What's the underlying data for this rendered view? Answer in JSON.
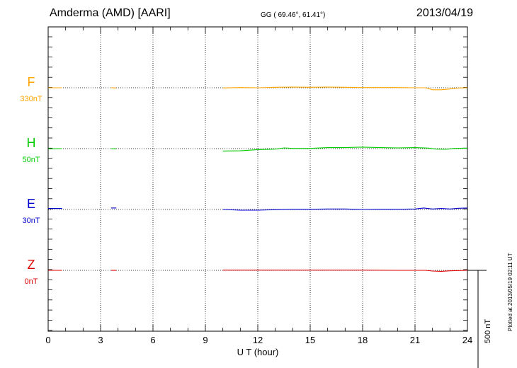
{
  "header": {
    "station": "Amderma (AMD)  [AARI]",
    "coords": "GG ( 69.46°,  61.41°)",
    "date": "2013/04/19"
  },
  "footer": {
    "plotted": "Plotted at 2013/05/19 02:11 UT"
  },
  "scale_bar": {
    "label": "500 nT",
    "value_nT": 500
  },
  "colors": {
    "F": "#ffa500",
    "H": "#00cc00",
    "E": "#0000cc",
    "Z": "#dd0000"
  },
  "chart_data": {
    "type": "line",
    "title": "",
    "xlabel": "U T (hour)",
    "ylabel": "",
    "xlim": [
      0,
      24
    ],
    "x_ticks": [
      0,
      3,
      6,
      9,
      12,
      15,
      18,
      21,
      24
    ],
    "x_tick_labels": [
      "0",
      "3",
      "6",
      "9",
      "12",
      "15",
      "18",
      "21",
      "24"
    ],
    "grid": true,
    "series": [
      {
        "name": "F",
        "baseline": "330nT",
        "segments": [
          [
            [
              0.0,
              0
            ],
            [
              0.8,
              0
            ]
          ],
          [
            [
              3.6,
              0
            ],
            [
              3.9,
              -1
            ]
          ],
          [
            [
              10.0,
              -1
            ],
            [
              11,
              1
            ],
            [
              12,
              0
            ],
            [
              13,
              2
            ],
            [
              14,
              3
            ],
            [
              15,
              2
            ],
            [
              16,
              3
            ],
            [
              17,
              2
            ],
            [
              18,
              1
            ],
            [
              19,
              1
            ],
            [
              20,
              1
            ],
            [
              21,
              0
            ],
            [
              21.6,
              0
            ],
            [
              22.0,
              -8
            ],
            [
              22.5,
              -8
            ],
            [
              23.0,
              -5
            ],
            [
              23.5,
              -1
            ],
            [
              24.0,
              0
            ]
          ]
        ]
      },
      {
        "name": "H",
        "baseline": "50nT",
        "segments": [
          [
            [
              0.0,
              -1
            ],
            [
              0.8,
              0
            ]
          ],
          [
            [
              3.6,
              0
            ],
            [
              3.9,
              -1
            ]
          ],
          [
            [
              10.0,
              -10
            ],
            [
              11,
              -9
            ],
            [
              12,
              -4
            ],
            [
              13,
              -2
            ],
            [
              13.5,
              3
            ],
            [
              14,
              1
            ],
            [
              15,
              1
            ],
            [
              16,
              4
            ],
            [
              17,
              4
            ],
            [
              18,
              6
            ],
            [
              19,
              4
            ],
            [
              20,
              3
            ],
            [
              21,
              4
            ],
            [
              21.8,
              2
            ],
            [
              22.2,
              -2
            ],
            [
              22.8,
              -3
            ],
            [
              23.2,
              1
            ],
            [
              24.0,
              2
            ]
          ]
        ]
      },
      {
        "name": "E",
        "baseline": "30nT",
        "segments": [
          [
            [
              0.0,
              4
            ],
            [
              0.8,
              4
            ]
          ],
          [
            [
              3.6,
              6
            ],
            [
              3.9,
              6
            ]
          ],
          [
            [
              10.0,
              0
            ],
            [
              11,
              -3
            ],
            [
              12,
              -3
            ],
            [
              13,
              -1
            ],
            [
              14,
              1
            ],
            [
              15,
              1
            ],
            [
              16,
              2
            ],
            [
              17,
              2
            ],
            [
              18,
              0
            ],
            [
              19,
              1
            ],
            [
              20,
              1
            ],
            [
              21,
              2
            ],
            [
              21.5,
              6
            ],
            [
              22,
              2
            ],
            [
              22.5,
              4
            ],
            [
              23,
              2
            ],
            [
              23.5,
              5
            ],
            [
              24.0,
              6
            ]
          ]
        ]
      },
      {
        "name": "Z",
        "baseline": "0nT",
        "segments": [
          [
            [
              0.0,
              0
            ],
            [
              0.8,
              0
            ]
          ],
          [
            [
              3.6,
              0
            ],
            [
              3.9,
              0
            ]
          ],
          [
            [
              10.0,
              1
            ],
            [
              12,
              1
            ],
            [
              14,
              1
            ],
            [
              16,
              1
            ],
            [
              18,
              1
            ],
            [
              20,
              0
            ],
            [
              21.6,
              0
            ],
            [
              22.0,
              -3
            ],
            [
              22.5,
              -4
            ],
            [
              23.0,
              -2
            ],
            [
              24.0,
              0
            ]
          ]
        ]
      }
    ]
  }
}
